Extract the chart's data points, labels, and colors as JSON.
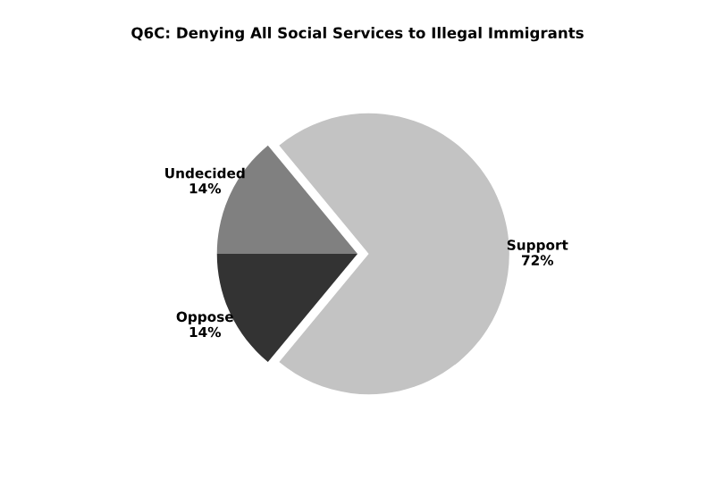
{
  "chart_data": {
    "type": "pie",
    "title": "Q6C: Denying All Social Services to Illegal Immigrants",
    "categories": [
      "Support",
      "Undecided",
      "Oppose"
    ],
    "values": [
      72,
      14,
      14
    ],
    "value_labels": [
      "72%",
      "14%",
      "14%"
    ],
    "colors": [
      "#c3c3c3",
      "#808080",
      "#333333"
    ]
  }
}
